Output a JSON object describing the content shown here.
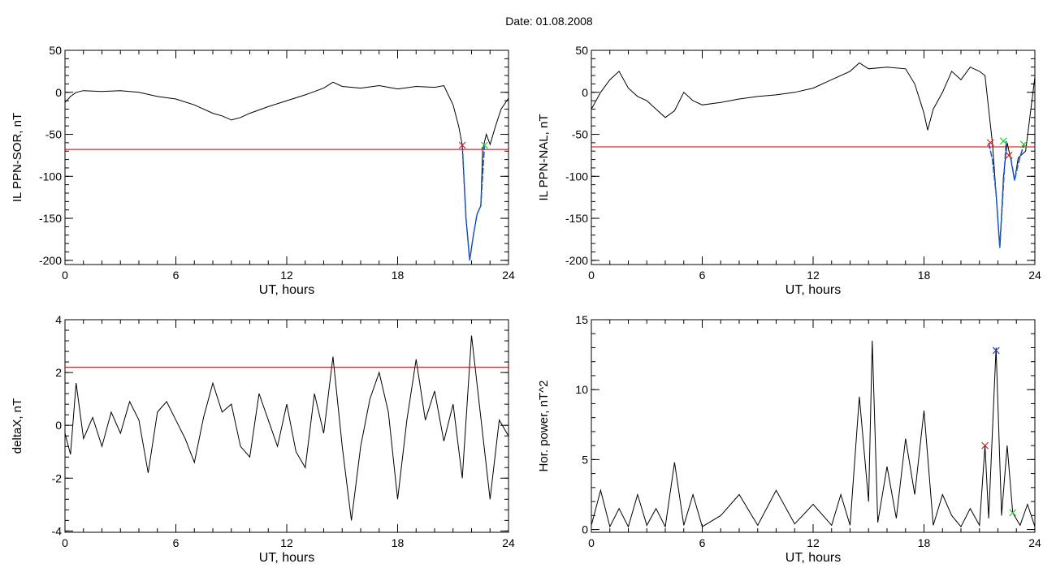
{
  "header": {
    "date_label": "Date:  01.08.2008"
  },
  "colors": {
    "axis": "#000000",
    "trace": "#000000",
    "threshold": "#cc0000",
    "event": "#1a5fd6",
    "marker_red": "#cc2222",
    "marker_green": "#22cc22",
    "marker_blue": "#2244cc"
  },
  "chart_data": [
    {
      "id": "top-left",
      "type": "line",
      "xlabel": "UT, hours",
      "ylabel": "IL PPN-SOR, nT",
      "xlim": [
        0,
        24
      ],
      "ylim": [
        -205,
        50
      ],
      "xticks": [
        0,
        6,
        12,
        18,
        24
      ],
      "yticks": [
        50,
        0,
        -50,
        -100,
        -150,
        -200
      ],
      "threshold": -68,
      "series": [
        {
          "points": [
            [
              0,
              -12
            ],
            [
              0.3,
              -5
            ],
            [
              0.6,
              0
            ],
            [
              1,
              2
            ],
            [
              2,
              1
            ],
            [
              3,
              2
            ],
            [
              4,
              0
            ],
            [
              5,
              -5
            ],
            [
              6,
              -8
            ],
            [
              7,
              -15
            ],
            [
              8,
              -25
            ],
            [
              8.5,
              -28
            ],
            [
              9,
              -33
            ],
            [
              9.5,
              -30
            ],
            [
              10,
              -25
            ],
            [
              11,
              -17
            ],
            [
              12,
              -10
            ],
            [
              13,
              -3
            ],
            [
              14,
              5
            ],
            [
              14.5,
              12
            ],
            [
              15,
              7
            ],
            [
              16,
              5
            ],
            [
              17,
              8
            ],
            [
              18,
              4
            ],
            [
              19,
              7
            ],
            [
              20,
              6
            ],
            [
              20.5,
              8
            ],
            [
              21,
              -15
            ],
            [
              21.3,
              -40
            ],
            [
              21.5,
              -63
            ],
            [
              21.7,
              -150
            ],
            [
              21.9,
              -200
            ],
            [
              22.1,
              -170
            ],
            [
              22.3,
              -145
            ],
            [
              22.5,
              -135
            ],
            [
              22.6,
              -68
            ],
            [
              22.8,
              -50
            ],
            [
              23,
              -62
            ],
            [
              23.3,
              -40
            ],
            [
              23.6,
              -20
            ],
            [
              24,
              -7
            ]
          ]
        }
      ],
      "event_segments": [
        [
          [
            21.5,
            -63
          ],
          [
            21.7,
            -150
          ],
          [
            21.9,
            -200
          ],
          [
            22.1,
            -170
          ],
          [
            22.3,
            -145
          ],
          [
            22.5,
            -135
          ],
          [
            22.7,
            -63
          ]
        ]
      ],
      "markers": [
        {
          "x": 21.5,
          "y": -63,
          "color": "red"
        },
        {
          "x": 22.7,
          "y": -63,
          "color": "green"
        }
      ]
    },
    {
      "id": "top-right",
      "type": "line",
      "xlabel": "UT, hours",
      "ylabel": "IL PPN-NAL, nT",
      "xlim": [
        0,
        24
      ],
      "ylim": [
        -205,
        50
      ],
      "xticks": [
        0,
        6,
        12,
        18,
        24
      ],
      "yticks": [
        50,
        0,
        -50,
        -100,
        -150,
        -200
      ],
      "threshold": -65,
      "series": [
        {
          "points": [
            [
              0,
              -20
            ],
            [
              0.5,
              0
            ],
            [
              1,
              15
            ],
            [
              1.5,
              25
            ],
            [
              2,
              5
            ],
            [
              2.5,
              -5
            ],
            [
              3,
              -10
            ],
            [
              3.5,
              -20
            ],
            [
              4,
              -30
            ],
            [
              4.5,
              -22
            ],
            [
              5,
              0
            ],
            [
              5.5,
              -10
            ],
            [
              6,
              -15
            ],
            [
              7,
              -12
            ],
            [
              8,
              -8
            ],
            [
              9,
              -5
            ],
            [
              10,
              -3
            ],
            [
              11,
              0
            ],
            [
              12,
              5
            ],
            [
              13,
              15
            ],
            [
              14,
              25
            ],
            [
              14.5,
              35
            ],
            [
              15,
              28
            ],
            [
              16,
              30
            ],
            [
              17,
              28
            ],
            [
              17.5,
              10
            ],
            [
              18,
              -25
            ],
            [
              18.2,
              -45
            ],
            [
              18.5,
              -20
            ],
            [
              19,
              0
            ],
            [
              19.5,
              25
            ],
            [
              20,
              15
            ],
            [
              20.5,
              30
            ],
            [
              21,
              25
            ],
            [
              21.3,
              20
            ],
            [
              21.5,
              -20
            ],
            [
              21.7,
              -60
            ],
            [
              21.9,
              -120
            ],
            [
              22.1,
              -185
            ],
            [
              22.3,
              -100
            ],
            [
              22.5,
              -60
            ],
            [
              22.7,
              -80
            ],
            [
              22.9,
              -105
            ],
            [
              23.1,
              -78
            ],
            [
              23.5,
              -70
            ],
            [
              24,
              18
            ]
          ]
        }
      ],
      "event_segments": [
        [
          [
            21.5,
            -60
          ],
          [
            21.7,
            -80
          ],
          [
            21.9,
            -120
          ],
          [
            22.1,
            -185
          ],
          [
            22.3,
            -110
          ],
          [
            22.45,
            -58
          ]
        ],
        [
          [
            22.7,
            -78
          ],
          [
            22.9,
            -105
          ],
          [
            23.1,
            -85
          ],
          [
            23.4,
            -62
          ]
        ]
      ],
      "markers": [
        {
          "x": 21.6,
          "y": -60,
          "color": "red"
        },
        {
          "x": 22.3,
          "y": -58,
          "color": "green"
        },
        {
          "x": 22.6,
          "y": -75,
          "color": "red"
        },
        {
          "x": 23.4,
          "y": -62,
          "color": "green"
        }
      ]
    },
    {
      "id": "bottom-left",
      "type": "line",
      "xlabel": "UT, hours",
      "ylabel": "deltaX, nT",
      "xlim": [
        0,
        24
      ],
      "ylim": [
        -4.05,
        4
      ],
      "xticks": [
        0,
        6,
        12,
        18,
        24
      ],
      "yticks": [
        4,
        2,
        0,
        -2,
        -4
      ],
      "threshold": 2.2,
      "series": [
        {
          "points": [
            [
              0,
              -0.3
            ],
            [
              0.3,
              -1.1
            ],
            [
              0.6,
              1.6
            ],
            [
              1,
              -0.5
            ],
            [
              1.5,
              0.3
            ],
            [
              2,
              -0.8
            ],
            [
              2.5,
              0.5
            ],
            [
              3,
              -0.3
            ],
            [
              3.5,
              0.9
            ],
            [
              4,
              0.2
            ],
            [
              4.5,
              -1.8
            ],
            [
              5,
              0.5
            ],
            [
              5.5,
              0.9
            ],
            [
              6,
              0.2
            ],
            [
              6.5,
              -0.5
            ],
            [
              7,
              -1.4
            ],
            [
              7.5,
              0.3
            ],
            [
              8,
              1.6
            ],
            [
              8.5,
              0.5
            ],
            [
              9,
              0.8
            ],
            [
              9.5,
              -0.8
            ],
            [
              10,
              -1.2
            ],
            [
              10.5,
              1.2
            ],
            [
              11,
              0.2
            ],
            [
              11.5,
              -0.8
            ],
            [
              12,
              0.8
            ],
            [
              12.5,
              -1.0
            ],
            [
              13,
              -1.6
            ],
            [
              13.5,
              1.2
            ],
            [
              14,
              -0.3
            ],
            [
              14.5,
              2.6
            ],
            [
              15,
              -0.8
            ],
            [
              15.5,
              -3.6
            ],
            [
              16,
              -0.8
            ],
            [
              16.5,
              1.0
            ],
            [
              17,
              2.0
            ],
            [
              17.5,
              0.5
            ],
            [
              18,
              -2.8
            ],
            [
              18.5,
              0.2
            ],
            [
              19,
              2.5
            ],
            [
              19.5,
              0.2
            ],
            [
              20,
              1.3
            ],
            [
              20.5,
              -0.6
            ],
            [
              21,
              0.8
            ],
            [
              21.5,
              -2.0
            ],
            [
              22,
              3.4
            ],
            [
              22.5,
              0.3
            ],
            [
              23,
              -2.8
            ],
            [
              23.5,
              0.2
            ],
            [
              24,
              -0.4
            ]
          ]
        }
      ],
      "event_segments": [],
      "markers": []
    },
    {
      "id": "bottom-right",
      "type": "line",
      "xlabel": "UT, hours",
      "ylabel": "Hor. power, nT^2",
      "xlim": [
        0,
        24
      ],
      "ylim": [
        -0.2,
        15
      ],
      "xticks": [
        0,
        6,
        12,
        18,
        24
      ],
      "yticks": [
        15,
        10,
        5,
        0
      ],
      "threshold": null,
      "series": [
        {
          "points": [
            [
              0,
              0.3
            ],
            [
              0.5,
              2.8
            ],
            [
              1,
              0.2
            ],
            [
              1.5,
              1.5
            ],
            [
              2,
              0.2
            ],
            [
              2.5,
              2.5
            ],
            [
              3,
              0.3
            ],
            [
              3.5,
              1.5
            ],
            [
              4,
              0.2
            ],
            [
              4.5,
              4.8
            ],
            [
              5,
              0.3
            ],
            [
              5.5,
              2.5
            ],
            [
              6,
              0.2
            ],
            [
              7,
              1.0
            ],
            [
              8,
              2.5
            ],
            [
              9,
              0.3
            ],
            [
              10,
              2.8
            ],
            [
              11,
              0.4
            ],
            [
              12,
              1.8
            ],
            [
              13,
              0.3
            ],
            [
              13.5,
              2.5
            ],
            [
              14,
              0.3
            ],
            [
              14.5,
              9.5
            ],
            [
              15,
              2.0
            ],
            [
              15.2,
              13.5
            ],
            [
              15.5,
              0.5
            ],
            [
              16,
              4.5
            ],
            [
              16.5,
              0.8
            ],
            [
              17,
              6.5
            ],
            [
              17.5,
              2.5
            ],
            [
              18,
              8.5
            ],
            [
              18.5,
              0.3
            ],
            [
              19,
              2.5
            ],
            [
              19.5,
              1.0
            ],
            [
              20,
              0.2
            ],
            [
              20.5,
              1.5
            ],
            [
              21,
              0.3
            ],
            [
              21.3,
              6.0
            ],
            [
              21.5,
              0.8
            ],
            [
              21.9,
              13.0
            ],
            [
              22.2,
              1.0
            ],
            [
              22.5,
              6.0
            ],
            [
              22.8,
              1.2
            ],
            [
              23.2,
              0.3
            ],
            [
              23.6,
              1.8
            ],
            [
              24,
              0.2
            ]
          ]
        }
      ],
      "event_segments": [],
      "markers": [
        {
          "x": 21.3,
          "y": 6.0,
          "color": "red"
        },
        {
          "x": 21.9,
          "y": 12.8,
          "color": "blue"
        },
        {
          "x": 22.8,
          "y": 1.2,
          "color": "green"
        }
      ]
    }
  ]
}
